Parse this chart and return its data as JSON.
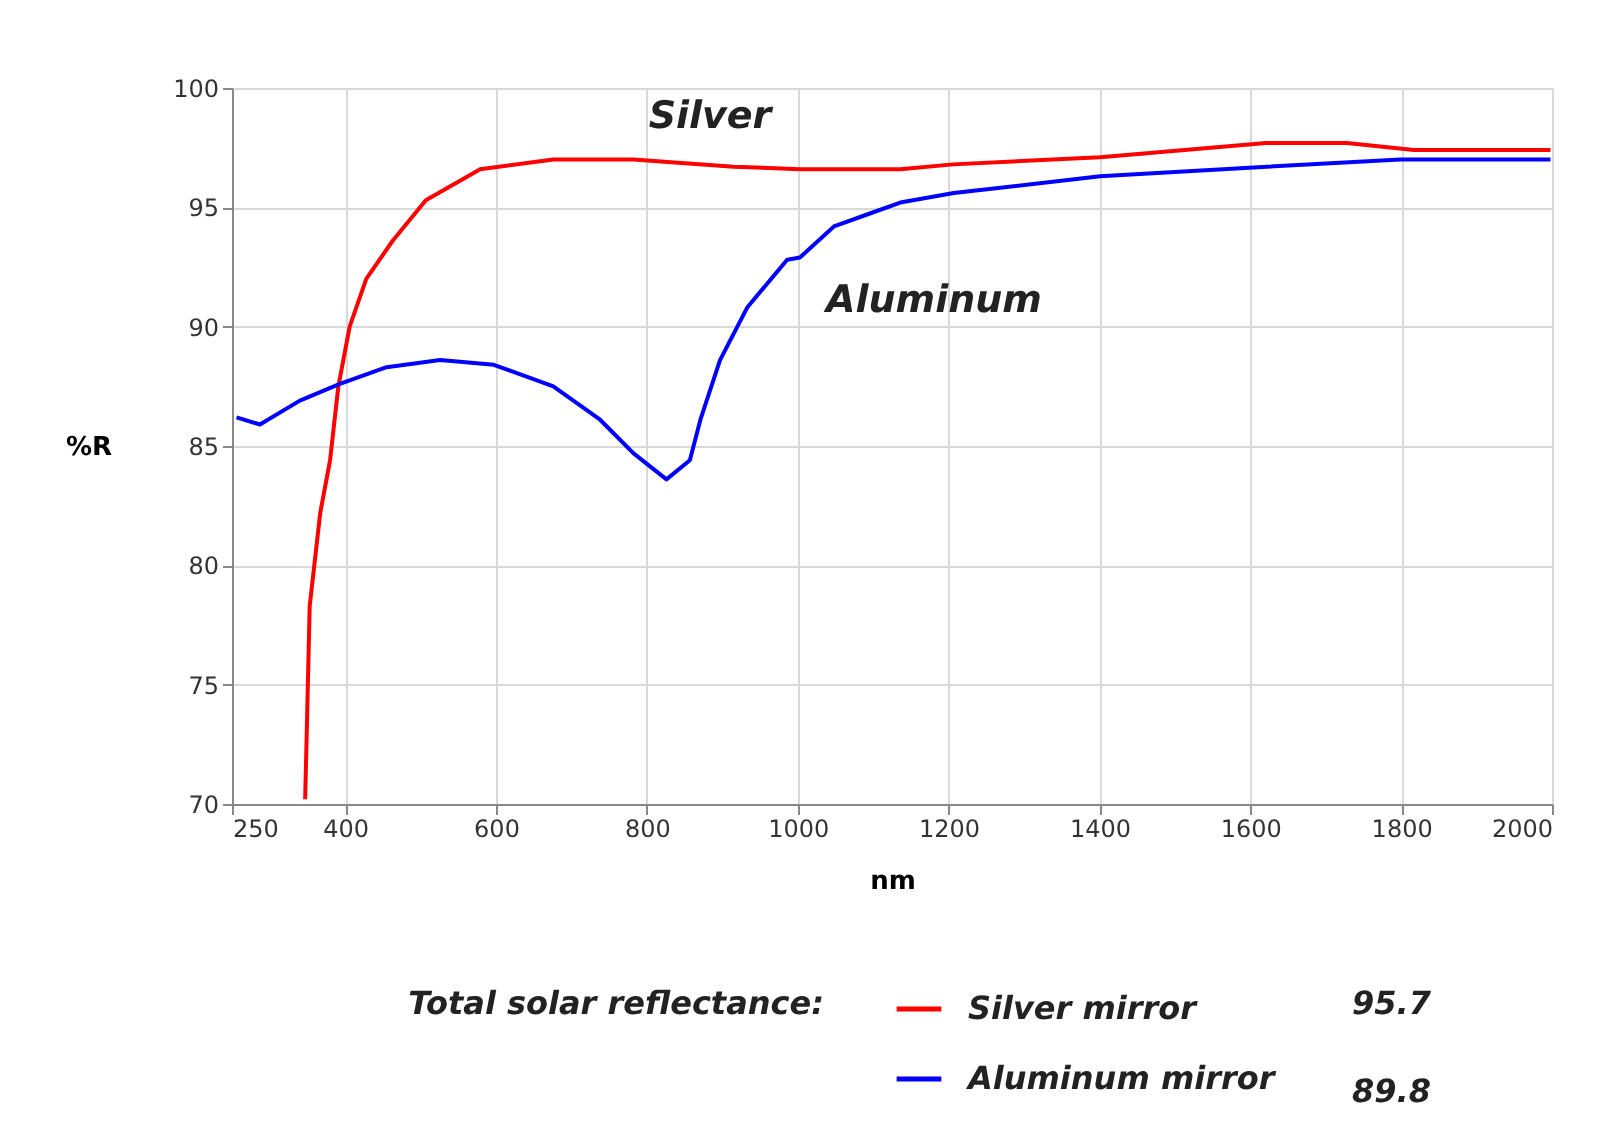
{
  "chart_data": {
    "type": "line",
    "xlabel": "nm",
    "ylabel": "%R",
    "xlim": [
      250,
      2000
    ],
    "xticks": [
      250,
      400,
      600,
      800,
      1000,
      1200,
      1400,
      1600,
      1800,
      2000
    ],
    "ylim": [
      70,
      100
    ],
    "yticks": [
      70,
      75,
      80,
      85,
      90,
      95,
      100
    ],
    "grid": true,
    "legend": "bottom",
    "line_style": "solid",
    "series": [
      {
        "name": "Silver mirror",
        "color": "#ff0000",
        "x": [
          347,
          353,
          367,
          380,
          391,
          406,
          428,
          463,
          507,
          579,
          676,
          782,
          915,
          1003,
          1136,
          1206,
          1401,
          1621,
          1728,
          1817,
          1932,
          1998
        ],
        "values": [
          70.2,
          78.3,
          82.2,
          84.4,
          87.5,
          90.0,
          92.0,
          93.6,
          95.3,
          96.6,
          97.0,
          97.0,
          96.7,
          96.6,
          96.6,
          96.8,
          97.1,
          97.7,
          97.7,
          97.4,
          97.4,
          97.4
        ]
      },
      {
        "name": "Aluminum mirror",
        "color": "#0000ff",
        "x": [
          256,
          287,
          340,
          393,
          455,
          526,
          597,
          676,
          738,
          782,
          826,
          857,
          871,
          897,
          933,
          986,
          1003,
          1048,
          1092,
          1136,
          1207,
          1401,
          1622,
          1799,
          1998
        ],
        "values": [
          86.2,
          85.9,
          86.9,
          87.6,
          88.3,
          88.6,
          88.4,
          87.5,
          86.1,
          84.7,
          83.6,
          84.4,
          86.1,
          88.6,
          90.8,
          92.8,
          92.9,
          94.2,
          94.7,
          95.2,
          95.6,
          96.3,
          96.7,
          97.0,
          97.0
        ]
      }
    ],
    "annotations": [
      "Silver",
      "Aluminum",
      "Total solar reflectance:",
      "95.7",
      "89.8"
    ]
  }
}
